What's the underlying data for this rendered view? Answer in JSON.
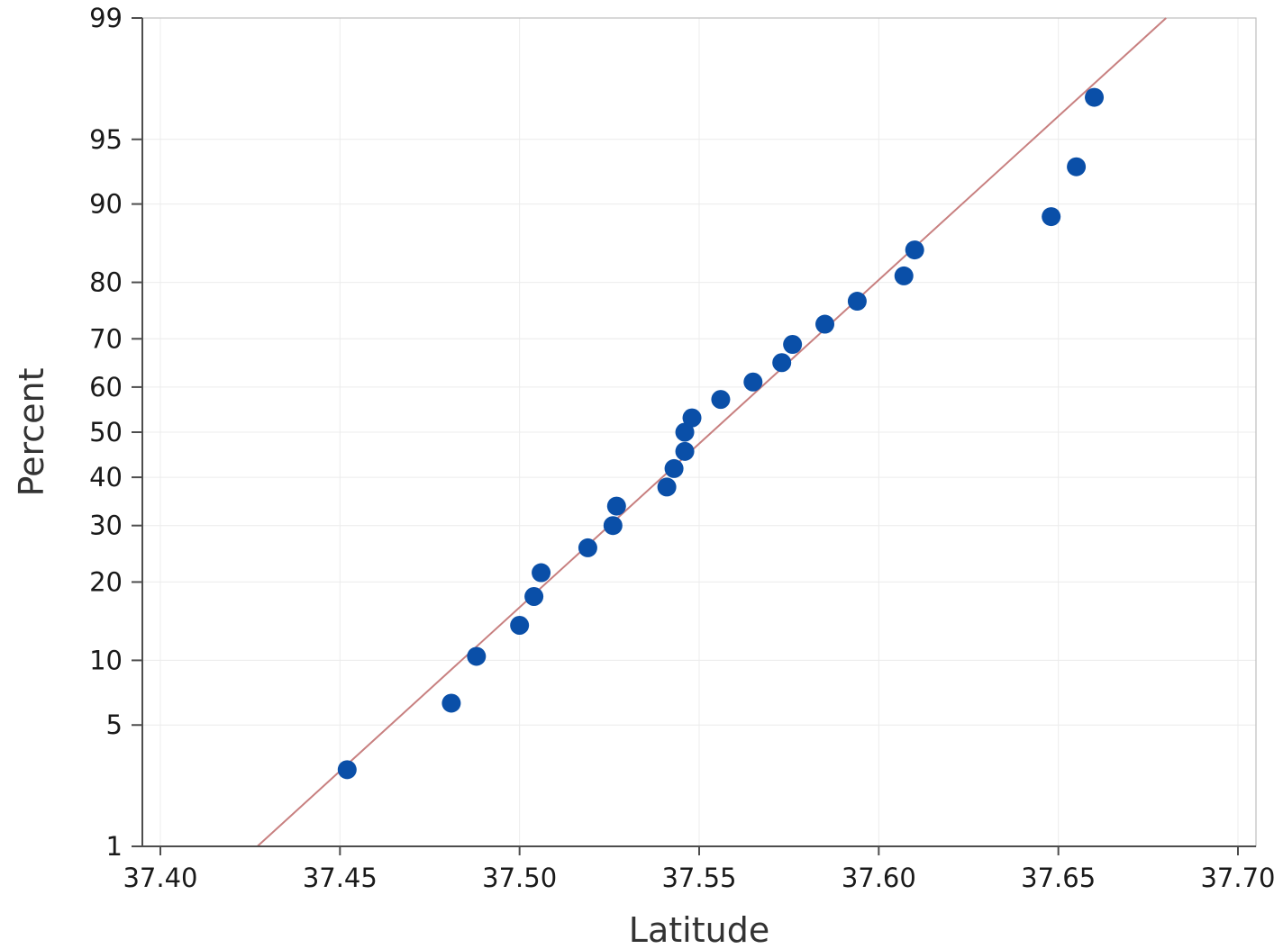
{
  "chart_data": {
    "type": "scatter",
    "title": "",
    "xlabel": "Latitude",
    "ylabel": "Percent",
    "xlim": [
      37.4,
      37.7
    ],
    "ylim": [
      1,
      99
    ],
    "y_scale": "normal-probability",
    "x_ticks": [
      "37.40",
      "37.45",
      "37.50",
      "37.55",
      "37.60",
      "37.65",
      "37.70"
    ],
    "y_ticks": [
      "1",
      "5",
      "10",
      "20",
      "30",
      "40",
      "50",
      "60",
      "70",
      "80",
      "90",
      "95",
      "99"
    ],
    "grid": true,
    "colors": {
      "points": "#0a4fa8",
      "fit_line": "#c88080"
    },
    "fit_line": {
      "x": [
        37.427,
        37.68
      ],
      "y": [
        1,
        99
      ]
    },
    "points": [
      {
        "x": 37.452,
        "y": 2.9
      },
      {
        "x": 37.481,
        "y": 6.4
      },
      {
        "x": 37.488,
        "y": 10.4
      },
      {
        "x": 37.5,
        "y": 13.9
      },
      {
        "x": 37.504,
        "y": 17.8
      },
      {
        "x": 37.506,
        "y": 21.5
      },
      {
        "x": 37.519,
        "y": 25.8
      },
      {
        "x": 37.526,
        "y": 30.0
      },
      {
        "x": 37.527,
        "y": 33.9
      },
      {
        "x": 37.541,
        "y": 37.9
      },
      {
        "x": 37.543,
        "y": 41.9
      },
      {
        "x": 37.546,
        "y": 45.7
      },
      {
        "x": 37.546,
        "y": 50.0
      },
      {
        "x": 37.548,
        "y": 53.2
      },
      {
        "x": 37.556,
        "y": 57.3
      },
      {
        "x": 37.565,
        "y": 61.1
      },
      {
        "x": 37.573,
        "y": 65.2
      },
      {
        "x": 37.576,
        "y": 68.9
      },
      {
        "x": 37.585,
        "y": 72.8
      },
      {
        "x": 37.594,
        "y": 76.9
      },
      {
        "x": 37.607,
        "y": 81.0
      },
      {
        "x": 37.61,
        "y": 84.7
      },
      {
        "x": 37.648,
        "y": 88.7
      },
      {
        "x": 37.655,
        "y": 93.2
      },
      {
        "x": 37.66,
        "y": 97.0
      }
    ]
  }
}
